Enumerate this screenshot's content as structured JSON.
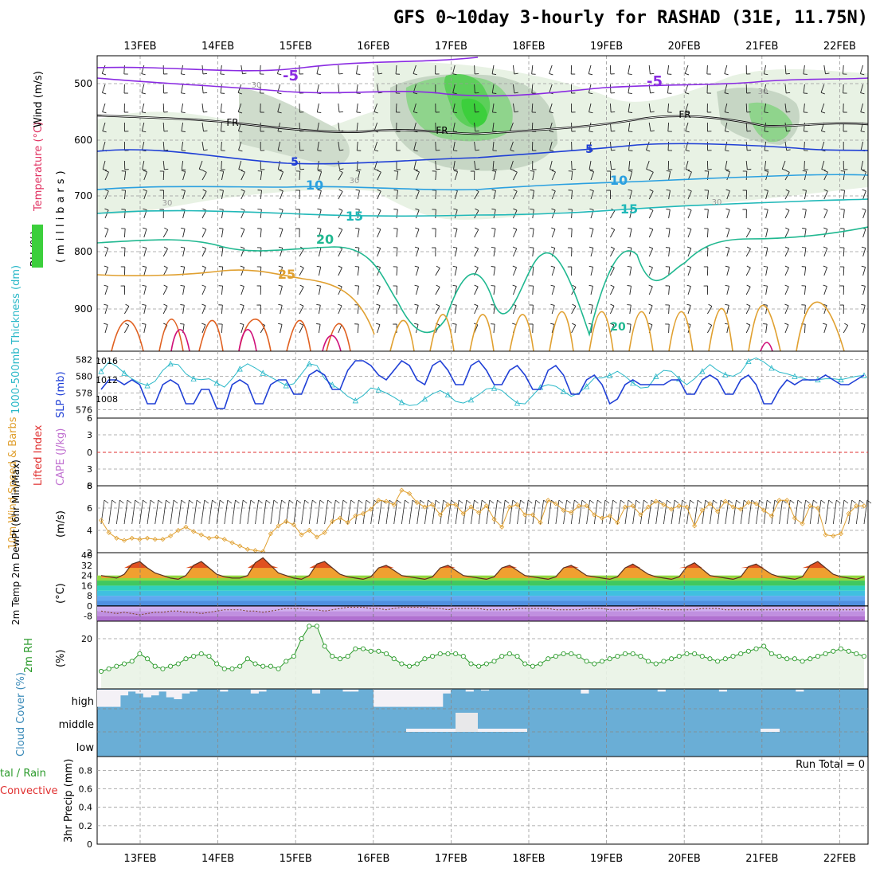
{
  "title": "GFS 0~10day 3-hourly for RASHAD (31E, 11.75N)",
  "date_labels": [
    "13FEB",
    "14FEB",
    "15FEB",
    "16FEB",
    "17FEB",
    "18FEB",
    "19FEB",
    "20FEB",
    "21FEB",
    "22FEB"
  ],
  "run_total_label": "Run Total = 0",
  "colors": {
    "slp": "#1f3fd6",
    "thickness": "#2ab8c8",
    "wind10m": "#e0a030",
    "rh2m": "#2a9a2a",
    "rh2m_fill": "#e9f3e6",
    "cloud": "#6aaed6",
    "cloud_white": "#f4f1f6",
    "lifted_index_zero": "#e03030"
  },
  "panels": {
    "upper": {
      "ylabel_wind": "Wind (m/s)",
      "ylabel_temp": "Temperature (°C)",
      "ylabel_rh": "RH (%)",
      "ylabel_pressure": "(millibars)",
      "y_ticks": [
        "500",
        "600",
        "700",
        "800",
        "900"
      ],
      "contour_labels": [
        "-5",
        "-5",
        "FR",
        "FR",
        "FR",
        "5",
        "5",
        "10",
        "10",
        "15",
        "15",
        "20",
        "25",
        "20",
        "30",
        "30",
        "30",
        "30",
        "30"
      ]
    },
    "slp_thk": {
      "ylabel_thickness": "1000-500mb Thickness (dm)",
      "ylabel_slp": "SLP (mb)",
      "left_ticks": [
        "582",
        "580",
        "578",
        "576"
      ],
      "right_ticks": [
        "1016",
        "1012",
        "1008"
      ]
    },
    "cape": {
      "ylabel_li": "Lifted Index",
      "ylabel_cape": "CAPE (J/kg)",
      "left_ticks": [
        "6",
        "3",
        "0",
        "3",
        "6"
      ]
    },
    "wind10m": {
      "ylabel": "10m Wind Speed & Barbs",
      "units": "(m/s)",
      "y_ticks": [
        "8",
        "6",
        "4",
        "2"
      ]
    },
    "temp2m": {
      "ylabel": "2m Temp 2m DewPt (6hr Min/Max)",
      "units": "(°C)",
      "y_ticks": [
        "40",
        "32",
        "24",
        "16",
        "8",
        "0",
        "-8"
      ]
    },
    "rh2m": {
      "ylabel": "2m RH",
      "units": "(%)",
      "y_ticks": [
        "20"
      ]
    },
    "cloud": {
      "ylabel": "Cloud Cover (%)",
      "level_labels": [
        "high",
        "middle",
        "low"
      ]
    },
    "precip": {
      "ylabel_total": "tal / Rain",
      "ylabel_conv": "Convective",
      "ylabel_axis": "3hr Precip (mm)",
      "y_ticks": [
        "0.8",
        "0.6",
        "0.4",
        "0.2",
        "0"
      ]
    }
  },
  "chart_data": [
    {
      "type": "line",
      "name": "sea-level-pressure",
      "x_start": "12FEB 12Z",
      "x_step_hours": 6,
      "series": [
        {
          "name": "SLP (mb)",
          "axis": "right",
          "values": [
            1010,
            1012,
            1012,
            1011,
            1012,
            1011,
            1007,
            1007,
            1011,
            1012,
            1011,
            1007,
            1007,
            1010,
            1010,
            1006,
            1006,
            1011,
            1012,
            1011,
            1007,
            1007,
            1011,
            1012,
            1012,
            1009,
            1009,
            1013,
            1014,
            1013,
            1010,
            1010,
            1014,
            1016,
            1016,
            1015,
            1013,
            1012,
            1014,
            1016,
            1015,
            1012,
            1011,
            1015,
            1016,
            1014,
            1011,
            1011,
            1015,
            1016,
            1014,
            1011,
            1011,
            1014,
            1015,
            1013,
            1010,
            1010,
            1014,
            1015,
            1013,
            1009,
            1009,
            1012,
            1013,
            1011,
            1007,
            1008,
            1011,
            1012,
            1011,
            1011,
            1011,
            1011,
            1012,
            1012,
            1009,
            1009,
            1012,
            1013,
            1012,
            1009,
            1009,
            1012,
            1013,
            1011,
            1007,
            1007,
            1010,
            1012,
            1011,
            1012,
            1012,
            1012,
            1013,
            1012,
            1011,
            1011,
            1012,
            1013
          ]
        },
        {
          "name": "1000-500mb Thickness (dm)",
          "axis": "left",
          "values": [
            580.6,
            581.7,
            581.2,
            580.4,
            579.7,
            579.2,
            578.9,
            579.4,
            580.7,
            581.5,
            581.4,
            580.3,
            579.7,
            579.6,
            579.7,
            579.2,
            578.7,
            579.7,
            580.9,
            581.5,
            581.0,
            580.4,
            579.9,
            579.4,
            578.9,
            579.1,
            580.3,
            581.5,
            581.3,
            579.7,
            579.0,
            578.4,
            577.6,
            577.1,
            577.7,
            578.6,
            578.4,
            578.0,
            577.5,
            576.9,
            576.5,
            576.6,
            577.3,
            577.9,
            578.3,
            577.8,
            577.0,
            576.8,
            577.2,
            577.8,
            578.5,
            578.6,
            578.3,
            577.5,
            576.8,
            576.7,
            577.7,
            578.7,
            579.0,
            578.8,
            578.2,
            577.6,
            578.0,
            578.8,
            579.8,
            579.8,
            580.1,
            580.6,
            580.0,
            579.2,
            578.6,
            578.7,
            580.0,
            580.7,
            580.6,
            579.7,
            579.0,
            579.7,
            580.6,
            581.4,
            580.7,
            580.2,
            580.0,
            580.5,
            581.8,
            582.2,
            581.7,
            581.0,
            580.5,
            580.3,
            580.0,
            579.8,
            579.5,
            579.6,
            579.7,
            579.7,
            579.6,
            579.8,
            580.0,
            580.1
          ]
        }
      ],
      "left_ylim": [
        575,
        583
      ],
      "right_ylim": [
        1004,
        1018
      ]
    },
    {
      "type": "line",
      "name": "10m-wind-speed",
      "ylabel": "(m/s)",
      "ylim": [
        2,
        8
      ],
      "series": [
        {
          "name": "10m Wind Speed",
          "values": [
            4.9,
            3.8,
            3.3,
            3.1,
            3.3,
            3.2,
            3.3,
            3.2,
            3.2,
            3.5,
            4.0,
            4.3,
            3.9,
            3.6,
            3.3,
            3.4,
            3.2,
            2.9,
            2.6,
            2.3,
            2.2,
            2.1,
            3.7,
            4.4,
            4.8,
            4.5,
            3.6,
            4.0,
            3.4,
            3.8,
            4.8,
            5.1,
            4.7,
            5.3,
            5.5,
            5.9,
            6.7,
            6.6,
            6.3,
            7.6,
            7.3,
            6.5,
            6.1,
            6.3,
            5.4,
            6.3,
            6.3,
            5.5,
            6.1,
            5.6,
            6.2,
            5.0,
            4.3,
            6.1,
            6.3,
            5.4,
            5.4,
            4.7,
            6.7,
            6.4,
            5.8,
            5.6,
            6.2,
            6.2,
            5.4,
            5.1,
            5.3,
            4.7,
            6.1,
            6.2,
            5.4,
            6.1,
            6.6,
            6.3,
            5.9,
            6.2,
            6.1,
            4.4,
            5.8,
            6.4,
            5.7,
            6.6,
            6.1,
            5.9,
            6.5,
            6.4,
            5.8,
            5.3,
            6.7,
            6.7,
            5.1,
            4.6,
            6.2,
            6.0,
            3.6,
            3.5,
            3.7,
            5.5,
            6.2,
            6.2
          ]
        }
      ]
    },
    {
      "type": "area",
      "name": "2m-temperature",
      "ylabel": "(°C)",
      "ylim": [
        -12,
        42
      ],
      "series": [
        {
          "name": "2m Temp",
          "values": [
            24,
            23,
            22,
            25,
            33,
            35,
            30,
            26,
            24,
            22,
            21,
            24,
            32,
            35,
            30,
            25,
            23,
            22,
            22,
            24,
            34,
            38,
            32,
            26,
            24,
            22,
            21,
            24,
            33,
            35,
            30,
            25,
            23,
            22,
            21,
            23,
            30,
            32,
            28,
            24,
            23,
            22,
            21,
            23,
            30,
            32,
            28,
            24,
            23,
            22,
            21,
            23,
            30,
            32,
            28,
            24,
            23,
            22,
            21,
            23,
            30,
            32,
            28,
            24,
            23,
            22,
            21,
            23,
            30,
            33,
            29,
            25,
            23,
            22,
            21,
            23,
            31,
            34,
            29,
            24,
            23,
            22,
            21,
            23,
            31,
            33,
            29,
            25,
            23,
            22,
            21,
            23,
            32,
            35,
            30,
            25,
            23,
            22,
            21,
            23
          ]
        },
        {
          "name": "2m DewPt",
          "values": [
            -4,
            -5,
            -6,
            -5,
            -6,
            -7,
            -6,
            -5,
            -5,
            -4,
            -4,
            -5,
            -5,
            -6,
            -5,
            -4,
            -3,
            -3,
            -3,
            -4,
            -4,
            -5,
            -4,
            -3,
            -2,
            -2,
            -2,
            -3,
            -3,
            -4,
            -3,
            -2,
            -1,
            -1,
            -1,
            -2,
            -2,
            -3,
            -2,
            -1,
            -1,
            -1,
            -1,
            -2,
            -2,
            -3,
            -2,
            -2,
            -2,
            -2,
            -3,
            -3,
            -3,
            -3,
            -2,
            -2,
            -2,
            -2,
            -2,
            -3,
            -3,
            -3,
            -3,
            -2,
            -2,
            -2,
            -3,
            -3,
            -3,
            -3,
            -2,
            -2,
            -2,
            -3,
            -3,
            -3,
            -3,
            -3,
            -2,
            -2,
            -2,
            -3,
            -3,
            -3,
            -3,
            -3,
            -3,
            -3,
            -3,
            -3,
            -3,
            -3,
            -3,
            -3,
            -3,
            -3,
            -3,
            -3,
            -3,
            -3
          ]
        }
      ]
    },
    {
      "type": "line",
      "name": "2m-relative-humidity",
      "ylabel": "(%)",
      "ylim": [
        0,
        27
      ],
      "series": [
        {
          "name": "2m RH",
          "values": [
            7,
            8,
            9,
            10,
            11,
            14,
            12,
            9,
            8,
            9,
            10,
            12,
            13,
            14,
            13,
            10,
            8,
            8,
            9,
            12,
            10,
            9,
            9,
            8,
            11,
            13,
            20,
            25,
            25,
            17,
            13,
            12,
            13,
            16,
            16,
            15,
            15,
            14,
            12,
            10,
            9,
            10,
            12,
            13,
            14,
            14,
            14,
            13,
            10,
            9,
            10,
            11,
            13,
            14,
            13,
            10,
            9,
            10,
            12,
            13,
            14,
            14,
            13,
            11,
            10,
            11,
            12,
            13,
            14,
            14,
            13,
            11,
            10,
            11,
            12,
            13,
            14,
            14,
            13,
            12,
            11,
            12,
            13,
            14,
            15,
            16,
            17,
            14,
            13,
            12,
            12,
            11,
            12,
            13,
            14,
            15,
            16,
            15,
            14,
            13
          ]
        }
      ]
    },
    {
      "type": "heatmap",
      "name": "cloud-cover",
      "levels": [
        "high",
        "middle",
        "low"
      ],
      "note_values": "fraction of column width that is clear (0-1) for the high level",
      "high_clear": [
        0.9,
        0.9,
        0.9,
        0.3,
        0.1,
        0.2,
        0.4,
        0.3,
        0.1,
        0.4,
        0.5,
        0.2,
        0.1,
        0,
        0,
        0,
        0.1,
        0,
        0,
        0,
        0.2,
        0.1,
        0,
        0,
        0,
        0,
        0,
        0,
        0.2,
        0,
        0,
        0,
        0.1,
        0.1,
        0,
        0,
        0.9,
        0.9,
        0.9,
        0.9,
        0.9,
        0.9,
        0.9,
        0.9,
        0.9,
        0.2,
        0,
        0,
        0.1,
        0,
        0.05,
        0,
        0,
        0,
        0,
        0,
        0,
        0,
        0,
        0,
        0,
        0,
        0,
        0.2,
        0,
        0,
        0,
        0,
        0,
        0,
        0,
        0,
        0,
        0.1,
        0,
        0,
        0,
        0,
        0,
        0,
        0,
        0.1,
        0,
        0,
        0,
        0,
        0,
        0,
        0,
        0,
        0,
        0.1,
        0,
        0,
        0,
        0,
        0,
        0,
        0,
        0
      ]
    }
  ]
}
